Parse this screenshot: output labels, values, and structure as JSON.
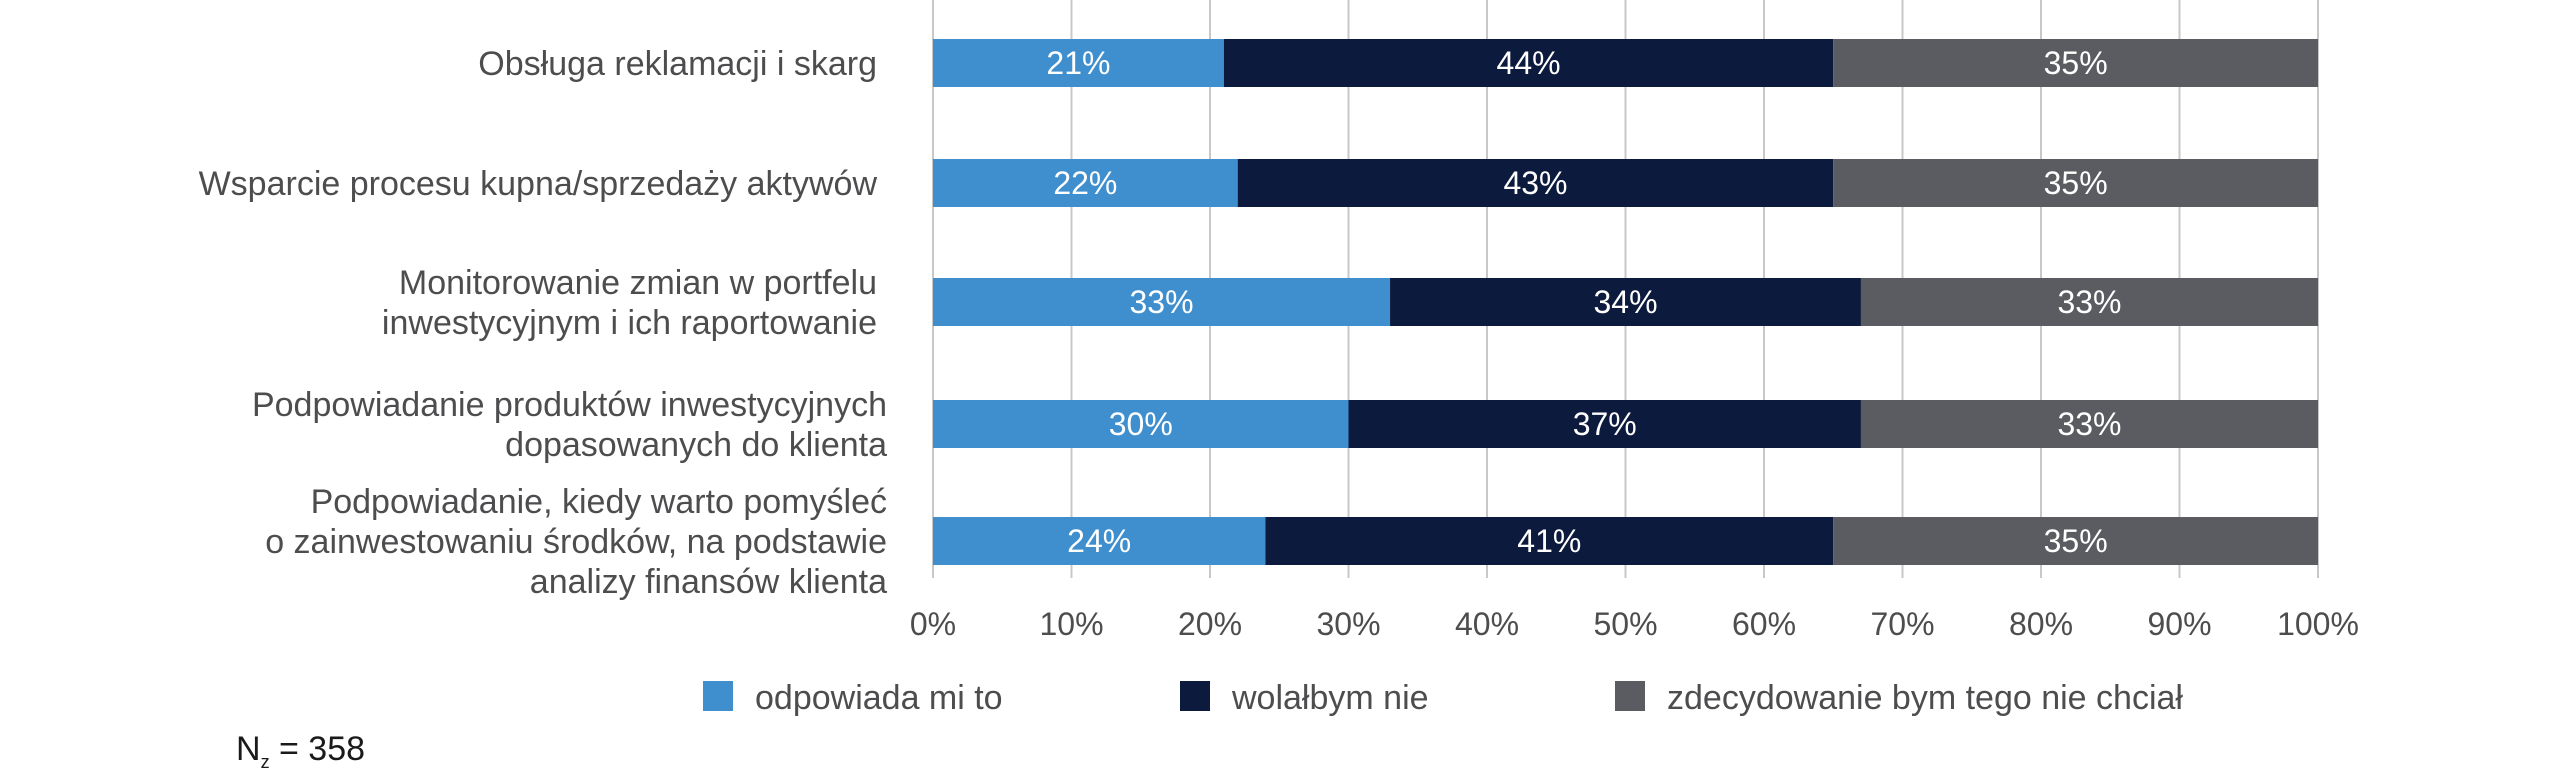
{
  "chart_data": {
    "type": "bar",
    "orientation": "horizontal",
    "stacked": true,
    "categories": [
      [
        "Obsługa reklamacji i skarg"
      ],
      [
        "Wsparcie procesu kupna/sprzedaży aktywów"
      ],
      [
        "Monitorowanie zmian w portfelu",
        "inwestycyjnym i ich raportowanie"
      ],
      [
        "Podpowiadanie produktów inwestycyjnych",
        "dopasowanych do klienta"
      ],
      [
        "Podpowiadanie, kiedy warto pomyśleć",
        "o zainwestowaniu środków, na podstawie",
        "analizy finansów klienta"
      ]
    ],
    "series": [
      {
        "name": "odpowiada mi to",
        "color": "#3f8fce",
        "values": [
          21,
          22,
          33,
          30,
          24
        ],
        "labels": [
          "21%",
          "22%",
          "33%",
          "30%",
          "24%"
        ]
      },
      {
        "name": "wolałbym nie",
        "color": "#0c1a3d",
        "values": [
          44,
          43,
          34,
          37,
          41
        ],
        "labels": [
          "44%",
          "43%",
          "34%",
          "37%",
          "41%"
        ]
      },
      {
        "name": "zdecydowanie bym tego nie chciał",
        "color": "#5a5c61",
        "values": [
          35,
          35,
          33,
          33,
          35
        ],
        "labels": [
          "35%",
          "35%",
          "33%",
          "33%",
          "35%"
        ]
      }
    ],
    "xlim": [
      0,
      100
    ],
    "xticks": [
      "0%",
      "10%",
      "20%",
      "30%",
      "40%",
      "50%",
      "60%",
      "70%",
      "80%",
      "90%",
      "100%"
    ],
    "grid": "vertical",
    "legend": "bottom",
    "gridColor": "#c8c8c8",
    "textColor": "#4d4d4f"
  },
  "note": {
    "prefix": "N",
    "subscript": "z",
    "suffix": " = 358"
  }
}
